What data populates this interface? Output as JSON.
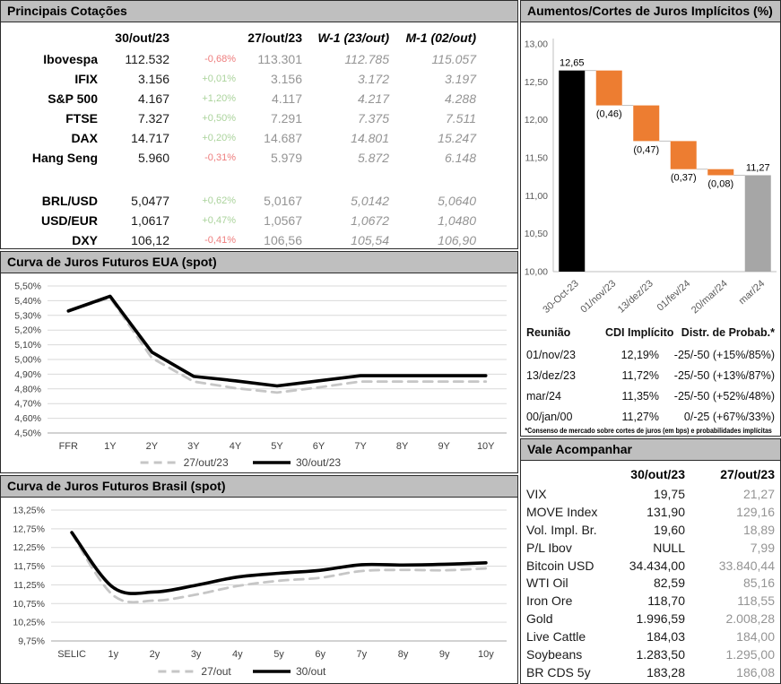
{
  "colors": {
    "positive": "#abd39c",
    "negative": "#ee7d7d",
    "muted_value": "#949494",
    "header_bg": "#bfbfbf",
    "grid": "#d9d9d9",
    "axis_line": "#bfbfbf",
    "axis_text": "#595959",
    "orange_bar": "#ED7D31",
    "gray_bar": "#A6A6A6",
    "black_bar": "#000000",
    "dashed_line": "#c6c6c6",
    "solid_line": "#000000"
  },
  "quotes": {
    "title": "Principais Cotações",
    "columns": {
      "current": "30/out/23",
      "prev": "27/out/23",
      "w1": "W-1 (23/out)",
      "m1": "M-1 (02/out)"
    },
    "rows": [
      {
        "label": "Ibovespa",
        "current": "112.532",
        "change": "-0,68%",
        "direction": "down",
        "prev": "113.301",
        "w1": "112.785",
        "m1": "115.057",
        "gap_before": false
      },
      {
        "label": "IFIX",
        "current": "3.156",
        "change": "+0,01%",
        "direction": "up",
        "prev": "3.156",
        "w1": "3.172",
        "m1": "3.197",
        "gap_before": false
      },
      {
        "label": "S&P 500",
        "current": "4.167",
        "change": "+1,20%",
        "direction": "up",
        "prev": "4.117",
        "w1": "4.217",
        "m1": "4.288",
        "gap_before": false
      },
      {
        "label": "FTSE",
        "current": "7.327",
        "change": "+0,50%",
        "direction": "up",
        "prev": "7.291",
        "w1": "7.375",
        "m1": "7.511",
        "gap_before": false
      },
      {
        "label": "DAX",
        "current": "14.717",
        "change": "+0,20%",
        "direction": "up",
        "prev": "14.687",
        "w1": "14.801",
        "m1": "15.247",
        "gap_before": false
      },
      {
        "label": "Hang Seng",
        "current": "5.960",
        "change": "-0,31%",
        "direction": "down",
        "prev": "5.979",
        "w1": "5.872",
        "m1": "6.148",
        "gap_before": false
      },
      {
        "label": "BRL/USD",
        "current": "5,0477",
        "change": "+0,62%",
        "direction": "up",
        "prev": "5,0167",
        "w1": "5,0142",
        "m1": "5,0640",
        "gap_before": true
      },
      {
        "label": "USD/EUR",
        "current": "1,0617",
        "change": "+0,47%",
        "direction": "up",
        "prev": "1,0567",
        "w1": "1,0672",
        "m1": "1,0480",
        "gap_before": false
      },
      {
        "label": "DXY",
        "current": "106,12",
        "change": "-0,41%",
        "direction": "down",
        "prev": "106,56",
        "w1": "105,54",
        "m1": "106,90",
        "gap_before": false
      }
    ]
  },
  "usa_curve": {
    "title": "Curva de Juros Futuros EUA (spot)"
  },
  "brazil_curve": {
    "title": "Curva de Juros Futuros Brasil (spot)"
  },
  "rates": {
    "title": "Aumentos/Cortes de Juros Implícitos (%)"
  },
  "meetings": {
    "headers": [
      "Reunião",
      "CDI Implícito",
      "Distr. de Probab.*"
    ],
    "rows": [
      [
        "01/nov/23",
        "12,19%",
        "-25/-50 (+15%/85%)"
      ],
      [
        "13/dez/23",
        "11,72%",
        "-25/-50 (+13%/87%)"
      ],
      [
        "mar/24",
        "11,35%",
        "-25/-50 (+52%/48%)"
      ],
      [
        "00/jan/00",
        "11,27%",
        "0/-25 (+67%/33%)"
      ]
    ],
    "footnote": "*Consenso de mercado sobre cortes de juros (em bps) e probabilidades implícitas"
  },
  "watch": {
    "title": "Vale Acompanhar",
    "columns": [
      "30/out/23",
      "27/out/23"
    ],
    "rows": [
      [
        "VIX",
        "19,75",
        "21,27"
      ],
      [
        "MOVE Index",
        "131,90",
        "129,16"
      ],
      [
        "Vol. Impl. Br.",
        "19,60",
        "18,89"
      ],
      [
        "P/L Ibov",
        "NULL",
        "7,99"
      ],
      [
        "Bitcoin USD",
        "34.434,00",
        "33.840,44"
      ],
      [
        "WTI Oil",
        "82,59",
        "85,16"
      ],
      [
        "Iron Ore",
        "118,70",
        "118,55"
      ],
      [
        "Gold",
        "1.996,59",
        "2.008,28"
      ],
      [
        "Live Cattle",
        "184,03",
        "184,00"
      ],
      [
        "Soybeans",
        "1.283,50",
        "1.295,00"
      ],
      [
        "BR CDS 5y",
        "183,28",
        "186,08"
      ]
    ]
  },
  "chart_data": [
    {
      "id": "implied-rates-waterfall",
      "type": "bar",
      "subtype": "waterfall",
      "title": "Aumentos/Cortes de Juros Implícitos (%)",
      "categories": [
        "30-Oct-23",
        "01/nov/23",
        "13/dez/23",
        "01/fev/24",
        "20/mar/24",
        "mar/24"
      ],
      "bars": [
        {
          "from": 10.0,
          "to": 12.65,
          "label": "12,65",
          "label_pos": "above",
          "color": "#000000"
        },
        {
          "from": 12.65,
          "to": 12.19,
          "label": "(0,46)",
          "label_pos": "below",
          "color": "#ED7D31"
        },
        {
          "from": 12.19,
          "to": 11.72,
          "label": "(0,47)",
          "label_pos": "below",
          "color": "#ED7D31"
        },
        {
          "from": 11.72,
          "to": 11.35,
          "label": "(0,37)",
          "label_pos": "below",
          "color": "#ED7D31"
        },
        {
          "from": 11.35,
          "to": 11.27,
          "label": "(0,08)",
          "label_pos": "below",
          "color": "#ED7D31"
        },
        {
          "from": 10.0,
          "to": 11.27,
          "label": "11,27",
          "label_pos": "above",
          "color": "#A6A6A6"
        }
      ],
      "ylim": [
        10.0,
        13.0
      ],
      "ytick_labels": [
        "10,00",
        "10,50",
        "11,00",
        "11,50",
        "12,00",
        "12,50",
        "13,00"
      ],
      "grid": false,
      "legend": "none"
    },
    {
      "id": "usa-curve",
      "type": "line",
      "title": "Curva de Juros Futuros EUA (spot)",
      "x": [
        "FFR",
        "1Y",
        "2Y",
        "3Y",
        "4Y",
        "5Y",
        "6Y",
        "7Y",
        "8Y",
        "9Y",
        "10Y"
      ],
      "series": [
        {
          "name": "27/out/23",
          "style": "dashed",
          "color": "#c6c6c6",
          "values": [
            5.33,
            5.42,
            5.01,
            4.85,
            4.805,
            4.775,
            4.81,
            4.85,
            4.85,
            4.85,
            4.85
          ]
        },
        {
          "name": "30/out/23",
          "style": "solid",
          "color": "#000000",
          "values": [
            5.33,
            5.43,
            5.05,
            4.885,
            4.855,
            4.82,
            4.855,
            4.89,
            4.89,
            4.89,
            4.89
          ]
        }
      ],
      "ylim": [
        4.5,
        5.5
      ],
      "ytick_labels": [
        "4,50%",
        "4,60%",
        "4,70%",
        "4,80%",
        "4,90%",
        "5,00%",
        "5,10%",
        "5,20%",
        "5,30%",
        "5,40%",
        "5,50%"
      ],
      "grid": true,
      "legend": "bottom",
      "smooth": false
    },
    {
      "id": "brazil-curve",
      "type": "line",
      "title": "Curva de Juros Futuros Brasil (spot)",
      "x": [
        "SELIC",
        "1y",
        "2y",
        "3y",
        "4y",
        "5y",
        "6y",
        "7y",
        "8y",
        "9y",
        "10y"
      ],
      "series": [
        {
          "name": "27/out",
          "style": "dashed",
          "color": "#c6c6c6",
          "values": [
            12.62,
            10.97,
            10.83,
            10.99,
            11.22,
            11.36,
            11.44,
            11.62,
            11.65,
            11.64,
            11.69
          ]
        },
        {
          "name": "30/out",
          "style": "solid",
          "color": "#000000",
          "values": [
            12.65,
            11.18,
            11.06,
            11.24,
            11.46,
            11.56,
            11.64,
            11.79,
            11.78,
            11.8,
            11.84
          ]
        }
      ],
      "ylim": [
        9.75,
        13.25
      ],
      "ytick_labels": [
        "9,75%",
        "10,25%",
        "10,75%",
        "11,25%",
        "11,75%",
        "12,25%",
        "12,75%",
        "13,25%"
      ],
      "grid": true,
      "legend": "bottom",
      "smooth": true
    }
  ]
}
